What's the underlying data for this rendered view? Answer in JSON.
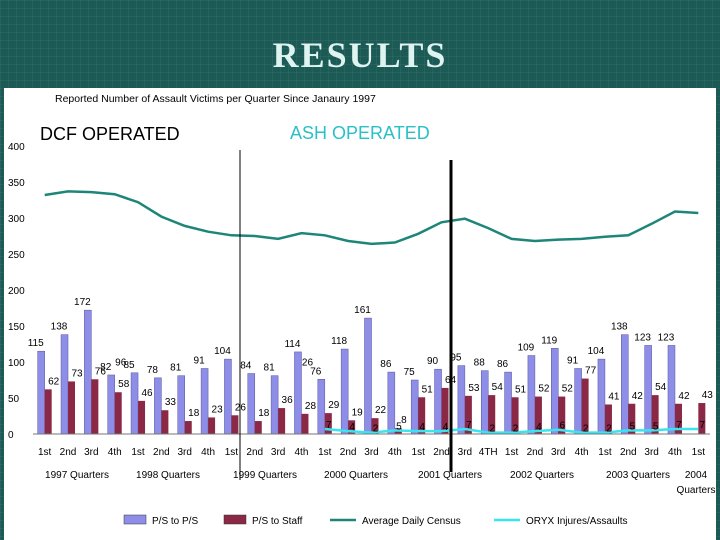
{
  "slide": {
    "title": "RESULTS"
  },
  "chart_data": {
    "type": "bar",
    "title": "Reported Number of Assault Victims per Quarter Since Janaury 1997",
    "ylim": [
      0,
      400
    ],
    "yticks": [
      0,
      50,
      100,
      150,
      200,
      250,
      300,
      350,
      400
    ],
    "annotations": {
      "left": "DCF OPERATED",
      "right": "ASH OPERATED"
    },
    "quarter_labels": [
      "1st",
      "2nd",
      "3rd",
      "4th",
      "1st",
      "2nd",
      "3rd",
      "4th",
      "1st",
      "2nd",
      "3rd",
      "4th",
      "1st",
      "2nd",
      "3rd",
      "4th",
      "1st",
      "2nd",
      "3rd",
      "4TH",
      "1st",
      "2nd",
      "3rd",
      "4th",
      "1st",
      "2nd",
      "3rd",
      "4th",
      "1st"
    ],
    "year_labels": [
      "1997 Quarters",
      "1998 Quarters",
      "1999 Quarters",
      "2000 Quarters",
      "2001 Quarters",
      "2002 Quarters",
      "2003 Quarters",
      "2004 Quarters"
    ],
    "series": [
      {
        "name": "P/S to P/S",
        "kind": "bar",
        "color": "#8e8ee8",
        "values": [
          115,
          138,
          172,
          82,
          85,
          78,
          81,
          91,
          104,
          84,
          81,
          114,
          76,
          118,
          161,
          86,
          75,
          90,
          95,
          88,
          86,
          109,
          119,
          91,
          104,
          138,
          123,
          123,
          null
        ],
        "labels": [
          "115",
          "138",
          "172",
          "82",
          "85",
          "78",
          "81",
          "91",
          "104",
          "84",
          "81",
          "114",
          "76",
          "118",
          "161",
          "86",
          "75",
          "90",
          "95",
          "88",
          "86",
          "109",
          "119",
          "91",
          "104",
          "138",
          "123",
          "123",
          ""
        ]
      },
      {
        "name": "P/S to Staff",
        "kind": "bar",
        "color": "#8b2846",
        "values": [
          62,
          73,
          76,
          58,
          46,
          33,
          18,
          23,
          26,
          18,
          36,
          28,
          29,
          19,
          22,
          8,
          51,
          64,
          53,
          54,
          51,
          52,
          52,
          77,
          41,
          42,
          54,
          42,
          43
        ],
        "labels": [
          "62",
          "73",
          "76",
          "58",
          "46",
          "33",
          "18",
          "23",
          "26",
          "18",
          "36",
          "28",
          "29",
          "19",
          "22",
          "8",
          "51",
          "64",
          "53",
          "54",
          "51",
          "52",
          "52",
          "77",
          "41",
          "42",
          "54",
          "42",
          "43"
        ]
      },
      {
        "name": "Average Daily Census",
        "kind": "line",
        "color": "#1e8579",
        "values": [
          332,
          337,
          336,
          333,
          322,
          302,
          289,
          281,
          276,
          275,
          271,
          279,
          276,
          268,
          264,
          266,
          278,
          294,
          299,
          286,
          271,
          268,
          270,
          271,
          274,
          276,
          292,
          309,
          307
        ]
      },
      {
        "name": "ORYX Injures/Assaults",
        "kind": "line",
        "color": "#38e4ee",
        "values": [
          null,
          null,
          null,
          null,
          null,
          null,
          null,
          null,
          null,
          null,
          null,
          null,
          7,
          4,
          2,
          5,
          4,
          4,
          7,
          2,
          2,
          4,
          6,
          2,
          2,
          5,
          5,
          7,
          7
        ],
        "labels": [
          "",
          "",
          "",
          "",
          "",
          "",
          "",
          "",
          "",
          "",
          "",
          "",
          "7",
          "4",
          "2",
          "5",
          "4",
          "4",
          "7",
          "2",
          "2",
          "4",
          "6",
          "2",
          "2",
          "5",
          "5",
          "7",
          "7"
        ]
      }
    ],
    "extra_labels": [
      {
        "text": "96",
        "index": 3
      },
      {
        "text": "26",
        "index": 11
      }
    ]
  }
}
